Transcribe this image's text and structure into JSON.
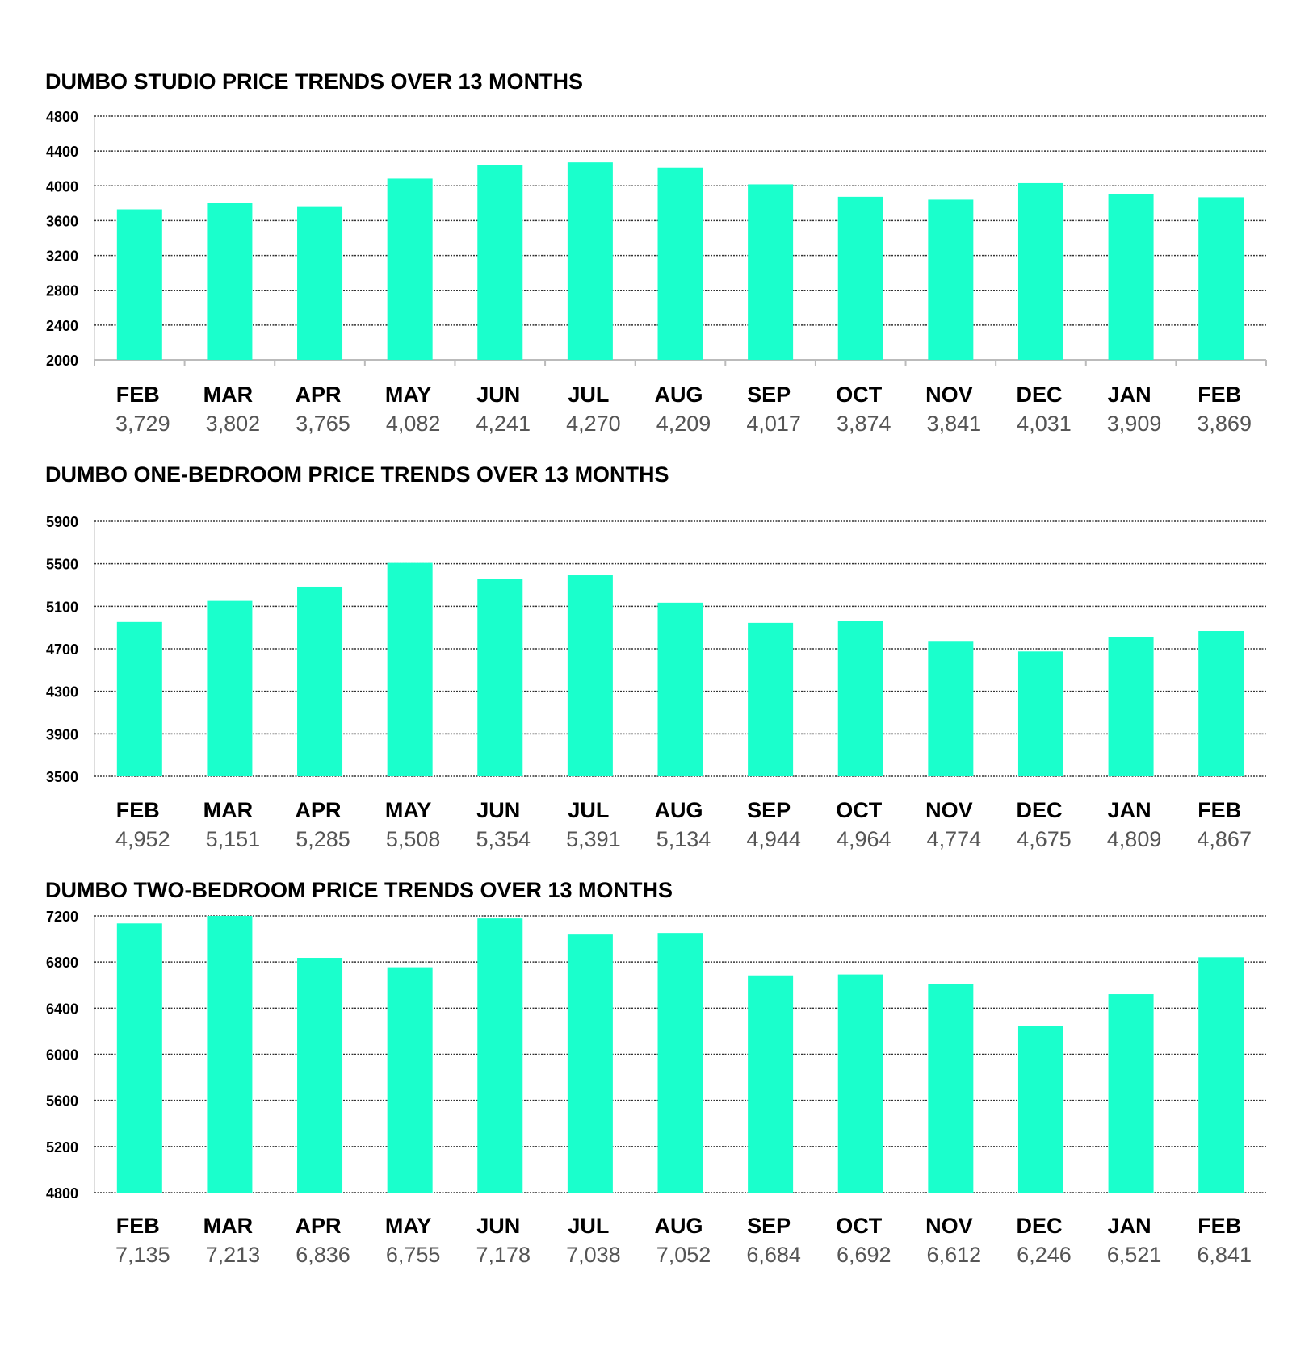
{
  "colors": {
    "bar": "#1affcc",
    "grid": "#333333",
    "axis": "#bbbbbb",
    "value_text": "#555555"
  },
  "chart_data": [
    {
      "type": "bar",
      "title": "DUMBO STUDIO PRICE TRENDS OVER 13 MONTHS",
      "categories": [
        "FEB",
        "MAR",
        "APR",
        "MAY",
        "JUN",
        "JUL",
        "AUG",
        "SEP",
        "OCT",
        "NOV",
        "DEC",
        "JAN",
        "FEB"
      ],
      "values": [
        3729,
        3802,
        3765,
        4082,
        4241,
        4270,
        4209,
        4017,
        3874,
        3841,
        4031,
        3909,
        3869
      ],
      "value_labels": [
        "3,729",
        "3,802",
        "3,765",
        "4,082",
        "4,241",
        "4,270",
        "4,209",
        "4,017",
        "3,874",
        "3,841",
        "4,031",
        "3,909",
        "3,869"
      ],
      "yticks": [
        "2000",
        "2400",
        "2800",
        "3200",
        "3600",
        "4000",
        "4400",
        "4800"
      ],
      "ylim": [
        2000,
        4800
      ],
      "grid": true,
      "xlabel": "",
      "ylabel": ""
    },
    {
      "type": "bar",
      "title": "DUMBO ONE-BEDROOM PRICE TRENDS OVER 13 MONTHS",
      "categories": [
        "FEB",
        "MAR",
        "APR",
        "MAY",
        "JUN",
        "JUL",
        "AUG",
        "SEP",
        "OCT",
        "NOV",
        "DEC",
        "JAN",
        "FEB"
      ],
      "values": [
        4952,
        5151,
        5285,
        5508,
        5354,
        5391,
        5134,
        4944,
        4964,
        4774,
        4675,
        4809,
        4867
      ],
      "value_labels": [
        "4,952",
        "5,151",
        "5,285",
        "5,508",
        "5,354",
        "5,391",
        "5,134",
        "4,944",
        "4,964",
        "4,774",
        "4,675",
        "4,809",
        "4,867"
      ],
      "yticks": [
        "3500",
        "3900",
        "4300",
        "4700",
        "5100",
        "5500",
        "5900"
      ],
      "ylim": [
        3500,
        5900
      ],
      "grid": true,
      "xlabel": "",
      "ylabel": ""
    },
    {
      "type": "bar",
      "title": "DUMBO TWO-BEDROOM PRICE TRENDS OVER 13 MONTHS",
      "categories": [
        "FEB",
        "MAR",
        "APR",
        "MAY",
        "JUN",
        "JUL",
        "AUG",
        "SEP",
        "OCT",
        "NOV",
        "DEC",
        "JAN",
        "FEB"
      ],
      "values": [
        7135,
        7213,
        6836,
        6755,
        7178,
        7038,
        7052,
        6684,
        6692,
        6612,
        6246,
        6521,
        6841
      ],
      "value_labels": [
        "7,135",
        "7,213",
        "6,836",
        "6,755",
        "7,178",
        "7,038",
        "7,052",
        "6,684",
        "6,692",
        "6,612",
        "6,246",
        "6,521",
        "6,841"
      ],
      "yticks": [
        "4800",
        "5200",
        "5600",
        "6000",
        "6400",
        "6800",
        "7200"
      ],
      "ylim": [
        4800,
        7200
      ],
      "grid": true,
      "xlabel": "",
      "ylabel": ""
    }
  ]
}
